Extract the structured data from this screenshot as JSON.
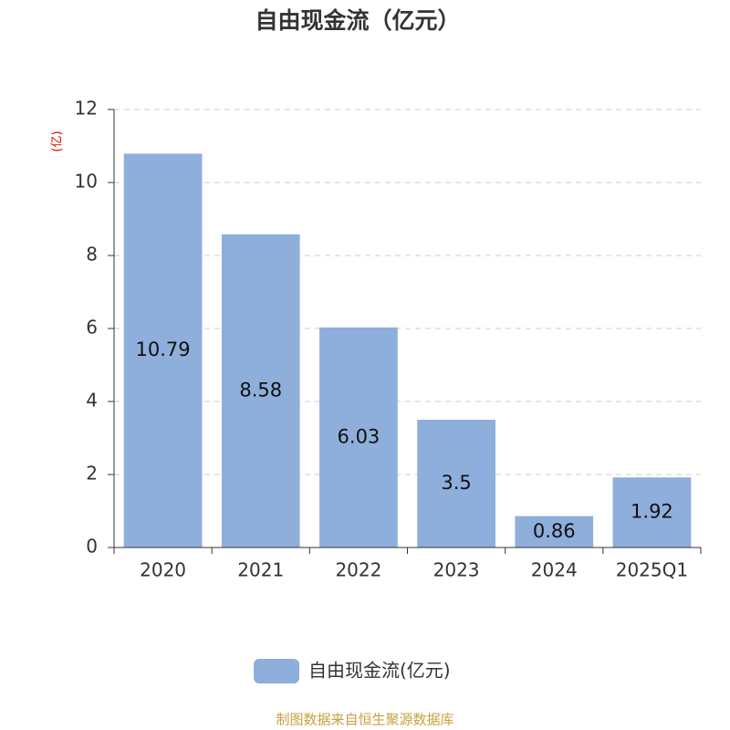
{
  "chart_data": {
    "type": "bar",
    "title": "自由现金流（亿元）",
    "y_label": "(亿)",
    "categories": [
      "2020",
      "2021",
      "2022",
      "2023",
      "2024",
      "2025Q1"
    ],
    "series": [
      {
        "name": "自由现金流(亿元)",
        "color": "#8eaedb",
        "values": [
          10.79,
          8.58,
          6.03,
          3.5,
          0.86,
          1.92
        ]
      }
    ],
    "ylim": [
      0,
      12
    ],
    "yticks": [
      0,
      2,
      4,
      6,
      8,
      10,
      12
    ],
    "grid": true,
    "source": "制图数据来自恒生聚源数据库"
  }
}
